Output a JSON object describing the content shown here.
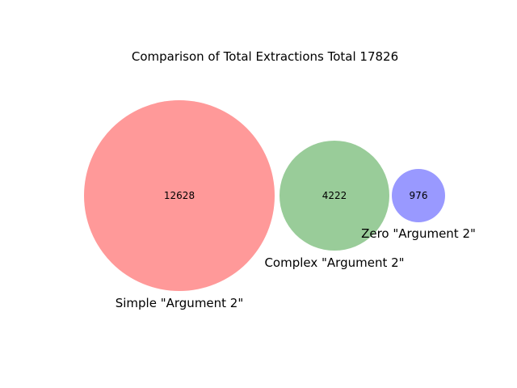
{
  "chart_data": {
    "type": "venn",
    "title": "Comparison of Total Extractions Total 17826",
    "sets": [
      {
        "label": "Simple \"Argument 2\"",
        "value": "12628",
        "color": "#ff9999"
      },
      {
        "label": "Complex \"Argument 2\"",
        "value": "4222",
        "color": "#99cc99"
      },
      {
        "label": "Zero \"Argument 2\"",
        "value": "976",
        "color": "#9999ff"
      }
    ]
  }
}
